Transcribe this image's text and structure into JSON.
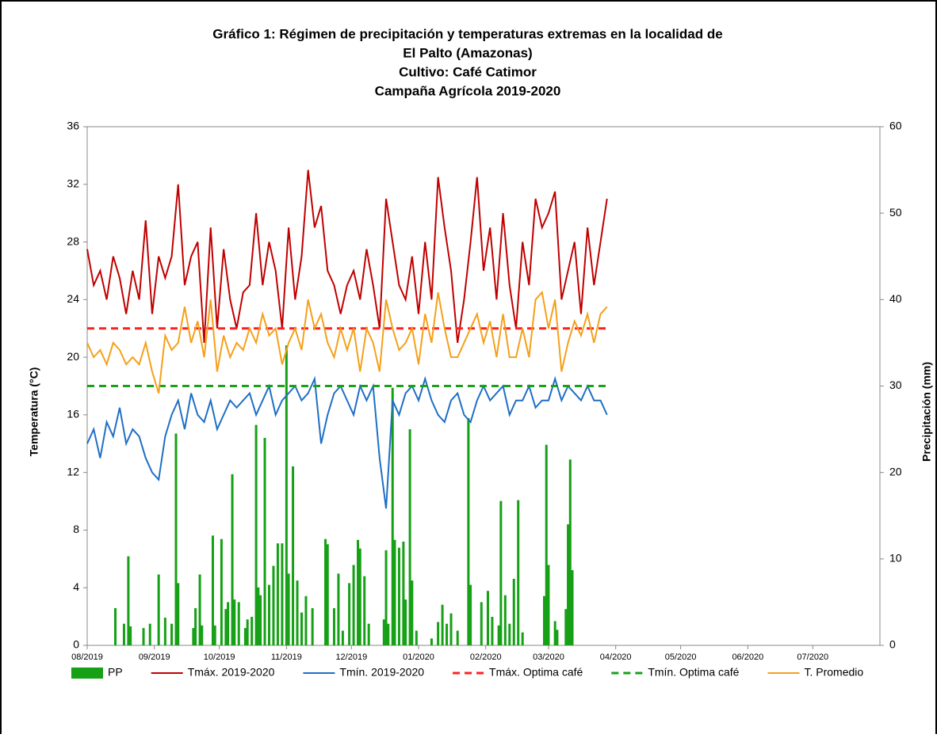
{
  "chart_data": {
    "type": "combo",
    "title": [
      "Gráfico 1: Régimen de precipitación y temperaturas extremas en la localidad de",
      "El Palto (Amazonas)",
      "Cultivo: Café Catimor",
      "Campaña Agrícola 2019-2020"
    ],
    "y_label": "Temperatura (°C)",
    "y2_label": "Precipitación (mm)",
    "xlim": [
      0,
      366
    ],
    "xticks": [
      {
        "value": 0,
        "label": "08/2019"
      },
      {
        "value": 31,
        "label": "09/2019"
      },
      {
        "value": 61,
        "label": "10/2019"
      },
      {
        "value": 92,
        "label": "11/2019"
      },
      {
        "value": 122,
        "label": "12/2019"
      },
      {
        "value": 153,
        "label": "01/2020"
      },
      {
        "value": 184,
        "label": "02/2020"
      },
      {
        "value": 213,
        "label": "03/2020"
      },
      {
        "value": 244,
        "label": "04/2020"
      },
      {
        "value": 274,
        "label": "05/2020"
      },
      {
        "value": 305,
        "label": "06/2020"
      },
      {
        "value": 335,
        "label": "07/2020"
      }
    ],
    "ylim": [
      0,
      36
    ],
    "yticks": [
      0,
      4,
      8,
      12,
      16,
      20,
      24,
      28,
      32,
      36
    ],
    "y2lim": [
      0,
      60
    ],
    "y2ticks": [
      0,
      10,
      20,
      30,
      40,
      50,
      60
    ],
    "legend": "bottom",
    "x": [
      0,
      3,
      6,
      9,
      12,
      15,
      18,
      21,
      24,
      27,
      30,
      33,
      36,
      39,
      42,
      45,
      48,
      51,
      54,
      57,
      60,
      63,
      66,
      69,
      72,
      75,
      78,
      81,
      84,
      87,
      90,
      93,
      96,
      99,
      102,
      105,
      108,
      111,
      114,
      117,
      120,
      123,
      126,
      129,
      132,
      135,
      138,
      141,
      144,
      147,
      150,
      153,
      156,
      159,
      162,
      165,
      168,
      171,
      174,
      177,
      180,
      183,
      186,
      189,
      192,
      195,
      198,
      201,
      204,
      207,
      210,
      213,
      216,
      219,
      222,
      225,
      228,
      231,
      234,
      237,
      240
    ],
    "series": [
      {
        "name": "PP",
        "type": "bar",
        "axis": "y2",
        "color": "#16a016",
        "x": [
          13,
          17,
          19,
          20,
          26,
          29,
          33,
          36,
          39,
          41,
          42,
          49,
          50,
          52,
          53,
          58,
          59,
          62,
          64,
          65,
          67,
          68,
          70,
          73,
          74,
          76,
          78,
          79,
          80,
          82,
          84,
          86,
          88,
          90,
          92,
          93,
          95,
          97,
          99,
          101,
          104,
          110,
          111,
          114,
          116,
          118,
          121,
          123,
          125,
          126,
          128,
          130,
          137,
          138,
          139,
          141,
          142,
          144,
          146,
          147,
          149,
          150,
          152,
          159,
          162,
          164,
          166,
          168,
          171,
          176,
          177,
          182,
          185,
          187,
          190,
          191,
          193,
          195,
          197,
          199,
          201,
          211,
          212,
          213,
          216,
          217,
          221,
          222,
          223,
          224
        ],
        "values": [
          4.3,
          2.5,
          10.3,
          2.2,
          2,
          2.5,
          8.2,
          3.2,
          2.5,
          24.5,
          7.2,
          2,
          4.3,
          8.2,
          2.3,
          12.7,
          2.3,
          12.3,
          4.2,
          5,
          19.8,
          5.3,
          5,
          2,
          3,
          3.3,
          25.5,
          6.7,
          5.8,
          24,
          7,
          9.2,
          11.8,
          11.8,
          34.7,
          8.3,
          20.7,
          7.5,
          3.8,
          5.7,
          4.3,
          12.3,
          11.7,
          4.3,
          8.3,
          1.7,
          7.2,
          9.3,
          12.2,
          11.2,
          8,
          2.5,
          3,
          11,
          2.5,
          29.8,
          12.2,
          11.3,
          12,
          5.3,
          25,
          7.5,
          1.7,
          0.8,
          2.7,
          4.7,
          2.5,
          3.7,
          1.7,
          26.3,
          7,
          5,
          6.3,
          3.3,
          2.3,
          16.7,
          5.8,
          2.5,
          7.7,
          16.8,
          1.5,
          5.7,
          23.2,
          9.3,
          2.8,
          1.8,
          4.2,
          14,
          21.5,
          8.7
        ]
      },
      {
        "name": "Tmáx. 2019-2020",
        "type": "line",
        "color": "#c00000",
        "values": [
          27.5,
          25,
          26,
          24,
          27,
          25.5,
          23,
          26,
          24,
          29.5,
          23,
          27,
          25.5,
          27,
          32,
          25,
          27,
          28,
          21,
          29,
          22,
          27.5,
          24,
          22,
          24.5,
          25,
          30,
          25,
          28,
          26,
          22,
          29,
          24,
          27,
          33,
          29,
          30.5,
          26,
          25,
          23,
          25,
          26,
          24,
          27.5,
          25,
          22,
          31,
          28,
          25,
          24,
          27,
          23,
          28,
          24,
          32.5,
          29,
          26,
          21,
          24,
          28,
          32.5,
          26,
          29,
          24,
          30,
          25,
          22,
          28,
          25,
          31,
          29,
          30,
          31.5,
          24,
          26,
          28,
          23,
          29,
          25,
          28,
          31
        ]
      },
      {
        "name": "Tmín. 2019-2020",
        "type": "line",
        "color": "#1f6fc5",
        "values": [
          14,
          15,
          13,
          15.5,
          14.5,
          16.5,
          14,
          15,
          14.5,
          13,
          12,
          11.5,
          14.5,
          16,
          17,
          15,
          17.5,
          16,
          15.5,
          17,
          15,
          16,
          17,
          16.5,
          17,
          17.5,
          16,
          17,
          18,
          16,
          17,
          17.5,
          18,
          17,
          17.5,
          18.5,
          14,
          16,
          17.5,
          18,
          17,
          16,
          18,
          17,
          18,
          13,
          9.5,
          17,
          16,
          17.5,
          18,
          17,
          18.5,
          17,
          16,
          15.5,
          17,
          17.5,
          16,
          15.5,
          17,
          18,
          17,
          17.5,
          18,
          16,
          17,
          17,
          18,
          16.5,
          17,
          17,
          18.5,
          17,
          18,
          17.5,
          17,
          18,
          17,
          17,
          16
        ]
      },
      {
        "name": "Tmáx. Optima café",
        "type": "hline",
        "color": "#ff2020",
        "value": 22
      },
      {
        "name": "Tmín. Optima café",
        "type": "hline",
        "color": "#1aa01a",
        "value": 18
      },
      {
        "name": "T. Promedio",
        "type": "line",
        "color": "#f5a01a",
        "values": [
          21,
          20,
          20.5,
          19.5,
          21,
          20.5,
          19.5,
          20,
          19.5,
          21,
          19,
          17.5,
          21.5,
          20.5,
          21,
          23.5,
          21,
          22.5,
          20,
          24,
          19,
          21.5,
          20,
          21,
          20.5,
          22,
          21,
          23,
          21.5,
          22,
          19.5,
          21,
          22,
          20.5,
          24,
          22,
          23,
          21,
          20,
          22,
          20.5,
          22,
          19,
          22,
          21,
          19,
          24,
          22,
          20.5,
          21,
          22,
          19.5,
          23,
          21,
          24.5,
          22,
          20,
          20,
          21,
          22,
          23,
          21,
          22.5,
          20,
          23,
          20,
          20,
          22,
          20,
          24,
          24.5,
          22,
          24,
          19,
          21,
          22.5,
          21.5,
          23,
          21,
          23,
          23.5
        ]
      }
    ]
  }
}
